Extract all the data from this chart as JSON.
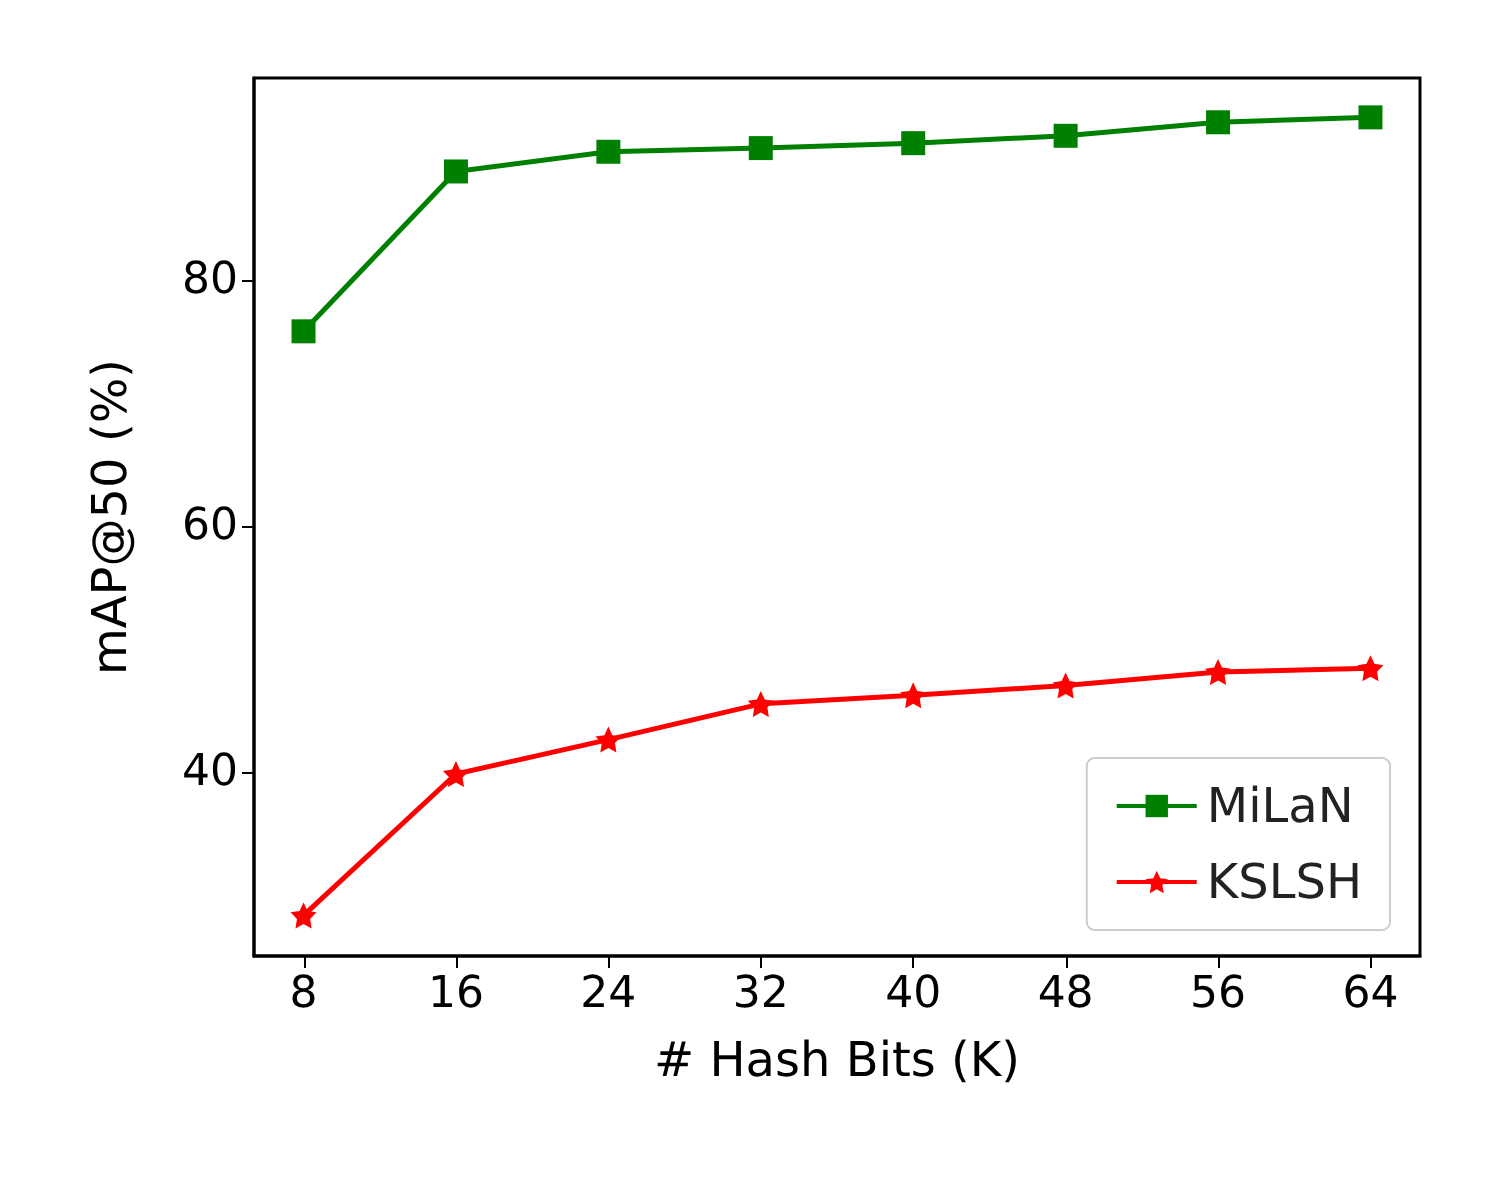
{
  "chart_data": {
    "type": "line",
    "xlabel": "# Hash Bits (K)",
    "ylabel": "mAP@50 (%)",
    "x": [
      8,
      16,
      24,
      32,
      40,
      48,
      56,
      64
    ],
    "xlim": [
      5.4,
      66.6
    ],
    "xticks": [
      8,
      16,
      24,
      32,
      40,
      48,
      56,
      64
    ],
    "ylim": [
      25,
      96.4
    ],
    "yticks": [
      40,
      60,
      80
    ],
    "legend": "bottom right",
    "grid": false,
    "series": [
      {
        "name": "MiLaN",
        "color": "#008000",
        "marker": "square",
        "values": [
          75.8,
          88.8,
          90.4,
          90.7,
          91.1,
          91.7,
          92.8,
          93.2
        ]
      },
      {
        "name": "KSLSH",
        "color": "#ff0000",
        "marker": "star",
        "values": [
          28.3,
          39.8,
          42.6,
          45.5,
          46.2,
          47.0,
          48.1,
          48.4
        ]
      }
    ]
  }
}
